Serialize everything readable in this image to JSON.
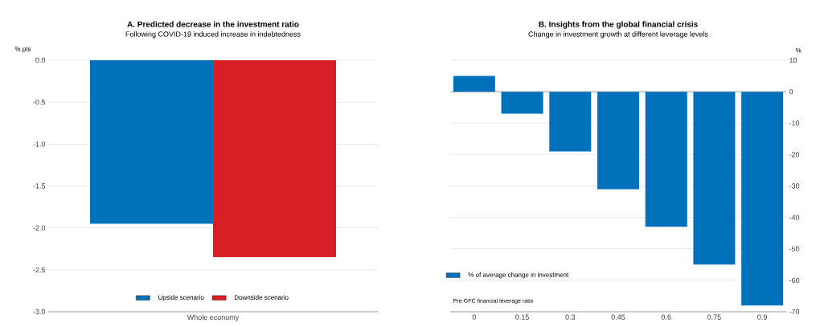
{
  "chart_data": [
    {
      "type": "bar",
      "title": "A. Predicted decrease in the investment ratio",
      "subtitle": "Following COVID-19 induced increase in indebtedness",
      "ylabel": "% pts",
      "categories": [
        "Whole economy"
      ],
      "series": [
        {
          "name": "Upside scenario",
          "color": "#0072bb",
          "values": [
            -1.95
          ]
        },
        {
          "name": "Downside scenario",
          "color": "#d91f26",
          "values": [
            -2.35
          ]
        }
      ],
      "ylim": [
        -3,
        0
      ],
      "yticks": [
        {
          "value": -3,
          "label": "-3.0"
        },
        {
          "value": -2.5,
          "label": "-2.5"
        },
        {
          "value": -2,
          "label": "-2.0"
        },
        {
          "value": -1.5,
          "label": "-1.5"
        },
        {
          "value": -1,
          "label": "-1.0"
        },
        {
          "value": -0.5,
          "label": "-0.5"
        },
        {
          "value": 0,
          "label": "0.0"
        }
      ],
      "grid": "y",
      "legend": "bottom"
    },
    {
      "type": "bar",
      "title": "B. Insights from the global financial crisis",
      "subtitle": "Change in investment growth at different leverage levels",
      "ylabel": "%",
      "xlabel": "Pre-GFC financial leverage ratio",
      "categories": [
        "0",
        "0.15",
        "0.3",
        "0.45",
        "0.6",
        "0.75",
        "0.9"
      ],
      "series": [
        {
          "name": "% of average change in investment",
          "color": "#0072bb",
          "values": [
            5,
            -7,
            -19,
            -31,
            -43,
            -55,
            -68
          ]
        }
      ],
      "ylim": [
        -70,
        10
      ],
      "yticks": [
        -70,
        -60,
        -50,
        -40,
        -30,
        -20,
        -10,
        0,
        10
      ],
      "grid": "y",
      "legend": "bottom left"
    }
  ]
}
